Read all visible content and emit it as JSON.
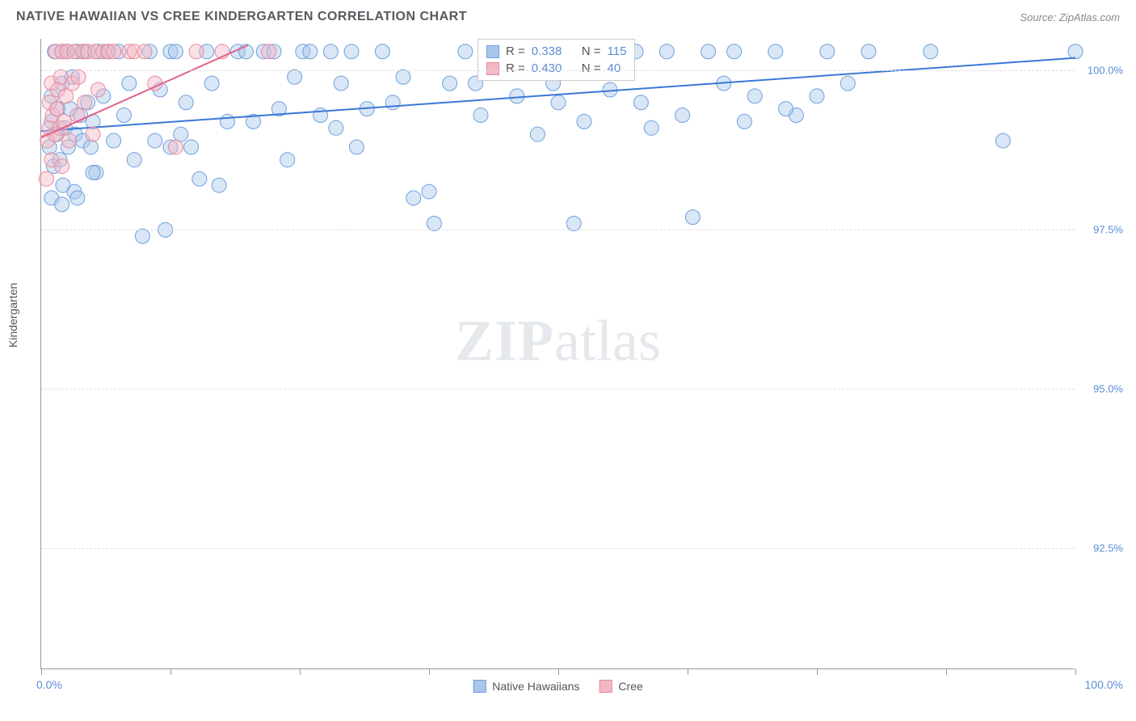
{
  "header": {
    "title": "NATIVE HAWAIIAN VS CREE KINDERGARTEN CORRELATION CHART",
    "source": "Source: ZipAtlas.com"
  },
  "watermark": {
    "zip": "ZIP",
    "atlas": "atlas"
  },
  "chart": {
    "type": "scatter",
    "ylabel": "Kindergarten",
    "xlim": [
      0,
      100
    ],
    "ylim": [
      90.6,
      100.5
    ],
    "xticks": [
      0,
      12.5,
      25,
      37.5,
      50,
      62.5,
      75,
      87.5,
      100
    ],
    "yticks": [
      92.5,
      95.0,
      97.5,
      100.0
    ],
    "ytick_labels": [
      "92.5%",
      "95.0%",
      "97.5%",
      "100.0%"
    ],
    "xaxis_label_left": "0.0%",
    "xaxis_label_right": "100.0%",
    "grid_color": "#dddddd",
    "axis_color": "#999999",
    "background_color": "#ffffff",
    "marker_radius": 9,
    "marker_opacity": 0.45,
    "line_width": 2,
    "series": [
      {
        "name": "Native Hawaiians",
        "color_fill": "#a9c7ea",
        "color_stroke": "#6fa0dc",
        "line_color": "#3b78d8",
        "R": "0.338",
        "N": "115",
        "trend": {
          "x1": 0,
          "y1": 99.05,
          "x2": 100,
          "y2": 100.2
        },
        "points": [
          [
            0.8,
            98.8
          ],
          [
            1.0,
            99.2
          ],
          [
            1.0,
            99.6
          ],
          [
            1.2,
            98.5
          ],
          [
            1.3,
            100.3
          ],
          [
            1.5,
            99.0
          ],
          [
            1.6,
            99.4
          ],
          [
            1.8,
            98.6
          ],
          [
            2.0,
            100.3
          ],
          [
            2.0,
            99.8
          ],
          [
            2.1,
            98.2
          ],
          [
            2.3,
            99.1
          ],
          [
            2.5,
            100.3
          ],
          [
            2.6,
            98.8
          ],
          [
            2.8,
            99.4
          ],
          [
            3.0,
            99.9
          ],
          [
            3.2,
            98.1
          ],
          [
            3.3,
            99.0
          ],
          [
            3.5,
            100.3
          ],
          [
            3.8,
            99.3
          ],
          [
            4.0,
            98.9
          ],
          [
            4.2,
            100.3
          ],
          [
            4.5,
            99.5
          ],
          [
            4.8,
            98.8
          ],
          [
            5.0,
            99.2
          ],
          [
            5.3,
            98.4
          ],
          [
            5.5,
            100.3
          ],
          [
            6.0,
            99.6
          ],
          [
            6.4,
            100.3
          ],
          [
            7.0,
            98.9
          ],
          [
            7.5,
            100.3
          ],
          [
            8.0,
            99.3
          ],
          [
            8.5,
            99.8
          ],
          [
            9.0,
            98.6
          ],
          [
            9.8,
            97.4
          ],
          [
            10.5,
            100.3
          ],
          [
            11.0,
            98.9
          ],
          [
            11.5,
            99.7
          ],
          [
            12.0,
            97.5
          ],
          [
            12.5,
            100.3
          ],
          [
            13.0,
            100.3
          ],
          [
            13.5,
            99.0
          ],
          [
            14.5,
            98.8
          ],
          [
            15.3,
            98.3
          ],
          [
            16.0,
            100.3
          ],
          [
            16.5,
            99.8
          ],
          [
            17.2,
            98.2
          ],
          [
            18.0,
            99.2
          ],
          [
            19.0,
            100.3
          ],
          [
            19.8,
            100.3
          ],
          [
            20.5,
            99.2
          ],
          [
            21.5,
            100.3
          ],
          [
            22.5,
            100.3
          ],
          [
            23.0,
            99.4
          ],
          [
            23.8,
            98.6
          ],
          [
            24.5,
            99.9
          ],
          [
            25.3,
            100.3
          ],
          [
            26.0,
            100.3
          ],
          [
            27.0,
            99.3
          ],
          [
            28.0,
            100.3
          ],
          [
            29.0,
            99.8
          ],
          [
            30.0,
            100.3
          ],
          [
            30.5,
            98.8
          ],
          [
            31.5,
            99.4
          ],
          [
            33.0,
            100.3
          ],
          [
            34.0,
            99.5
          ],
          [
            35.0,
            99.9
          ],
          [
            36.0,
            98.0
          ],
          [
            37.5,
            98.1
          ],
          [
            38.0,
            97.6
          ],
          [
            39.5,
            99.8
          ],
          [
            41.0,
            100.3
          ],
          [
            42.5,
            99.3
          ],
          [
            44.0,
            100.3
          ],
          [
            45.0,
            100.3
          ],
          [
            46.0,
            99.6
          ],
          [
            47.5,
            100.3
          ],
          [
            48.0,
            99.0
          ],
          [
            49.5,
            99.8
          ],
          [
            50.0,
            100.3
          ],
          [
            51.5,
            97.6
          ],
          [
            52.5,
            99.2
          ],
          [
            54.0,
            100.3
          ],
          [
            55.0,
            99.7
          ],
          [
            56.0,
            100.3
          ],
          [
            57.5,
            100.3
          ],
          [
            59.0,
            99.1
          ],
          [
            60.5,
            100.3
          ],
          [
            62.0,
            99.3
          ],
          [
            63.0,
            97.7
          ],
          [
            64.5,
            100.3
          ],
          [
            66.0,
            99.8
          ],
          [
            67.0,
            100.3
          ],
          [
            68.0,
            99.2
          ],
          [
            69.0,
            99.6
          ],
          [
            71.0,
            100.3
          ],
          [
            73.0,
            99.3
          ],
          [
            75.0,
            99.6
          ],
          [
            76.0,
            100.3
          ],
          [
            78.0,
            99.8
          ],
          [
            80.0,
            100.3
          ],
          [
            86.0,
            100.3
          ],
          [
            93.0,
            98.9
          ],
          [
            100.0,
            100.3
          ],
          [
            1.0,
            98.0
          ],
          [
            2.0,
            97.9
          ],
          [
            3.5,
            98.0
          ],
          [
            5.0,
            98.4
          ],
          [
            12.5,
            98.8
          ],
          [
            14.0,
            99.5
          ],
          [
            28.5,
            99.1
          ],
          [
            42.0,
            99.8
          ],
          [
            50.0,
            99.5
          ],
          [
            58.0,
            99.5
          ],
          [
            72.0,
            99.4
          ]
        ]
      },
      {
        "name": "Cree",
        "color_fill": "#f3b7c4",
        "color_stroke": "#e88aa0",
        "line_color": "#e06287",
        "R": "0.430",
        "N": "40",
        "trend": {
          "x1": 0,
          "y1": 98.95,
          "x2": 20,
          "y2": 100.4
        },
        "points": [
          [
            0.5,
            98.3
          ],
          [
            0.6,
            98.9
          ],
          [
            0.8,
            99.1
          ],
          [
            0.8,
            99.5
          ],
          [
            1.0,
            99.8
          ],
          [
            1.0,
            98.6
          ],
          [
            1.1,
            99.3
          ],
          [
            1.3,
            99.0
          ],
          [
            1.4,
            100.3
          ],
          [
            1.5,
            99.4
          ],
          [
            1.6,
            99.7
          ],
          [
            1.8,
            99.1
          ],
          [
            1.9,
            99.9
          ],
          [
            2.0,
            98.5
          ],
          [
            2.0,
            100.3
          ],
          [
            2.2,
            99.2
          ],
          [
            2.4,
            99.6
          ],
          [
            2.5,
            100.3
          ],
          [
            2.7,
            98.9
          ],
          [
            3.0,
            99.8
          ],
          [
            3.2,
            100.3
          ],
          [
            3.5,
            99.3
          ],
          [
            3.6,
            99.9
          ],
          [
            4.0,
            100.3
          ],
          [
            4.2,
            99.5
          ],
          [
            4.5,
            100.3
          ],
          [
            5.0,
            99.0
          ],
          [
            5.2,
            100.3
          ],
          [
            5.5,
            99.7
          ],
          [
            6.0,
            100.3
          ],
          [
            6.5,
            100.3
          ],
          [
            7.0,
            100.3
          ],
          [
            8.5,
            100.3
          ],
          [
            9.0,
            100.3
          ],
          [
            10.0,
            100.3
          ],
          [
            11.0,
            99.8
          ],
          [
            13.0,
            98.8
          ],
          [
            15.0,
            100.3
          ],
          [
            17.5,
            100.3
          ],
          [
            22.0,
            100.3
          ]
        ]
      }
    ],
    "legend": {
      "items": [
        {
          "label": "Native Hawaiians",
          "color": "#a9c7ea",
          "border": "#6fa0dc"
        },
        {
          "label": "Cree",
          "color": "#f3b7c4",
          "border": "#e88aa0"
        }
      ]
    }
  }
}
